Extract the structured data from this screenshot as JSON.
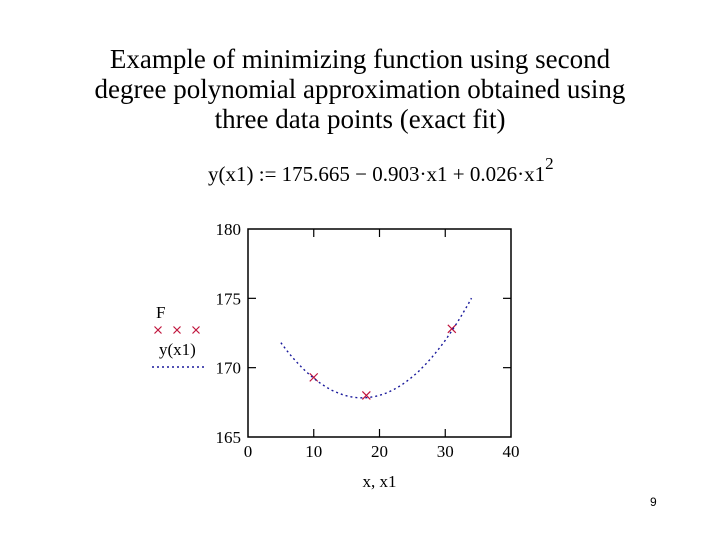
{
  "slide": {
    "title_lines": [
      "Example of minimizing function using second",
      "degree polynomial approximation obtained using",
      "three data points (exact fit)"
    ],
    "formula": {
      "lhs": "y(x1) := ",
      "rhs": "175.665 − 0.903·x1 + 0.026·x1",
      "exponent": "2"
    },
    "page_number": "9"
  },
  "chart_data": {
    "type": "scatter",
    "xlabel": "x, x1",
    "ylabel": "",
    "xlim": [
      0,
      40
    ],
    "ylim": [
      165,
      180
    ],
    "x_ticks": [
      0,
      10,
      20,
      30,
      40
    ],
    "y_ticks": [
      165,
      170,
      175,
      180
    ],
    "grid": false,
    "legend_position": "left",
    "series": [
      {
        "name": "F",
        "kind": "points",
        "marker": "×",
        "color": "#c0143c",
        "x": [
          10,
          18,
          31
        ],
        "y": [
          169.3,
          168.0,
          172.8
        ]
      },
      {
        "name": "y(x1)",
        "kind": "curve",
        "style": "dotted",
        "color": "#1a1a9c",
        "coefficients": [
          175.665,
          -0.903,
          0.026
        ],
        "x_range": [
          5,
          34
        ]
      }
    ]
  }
}
